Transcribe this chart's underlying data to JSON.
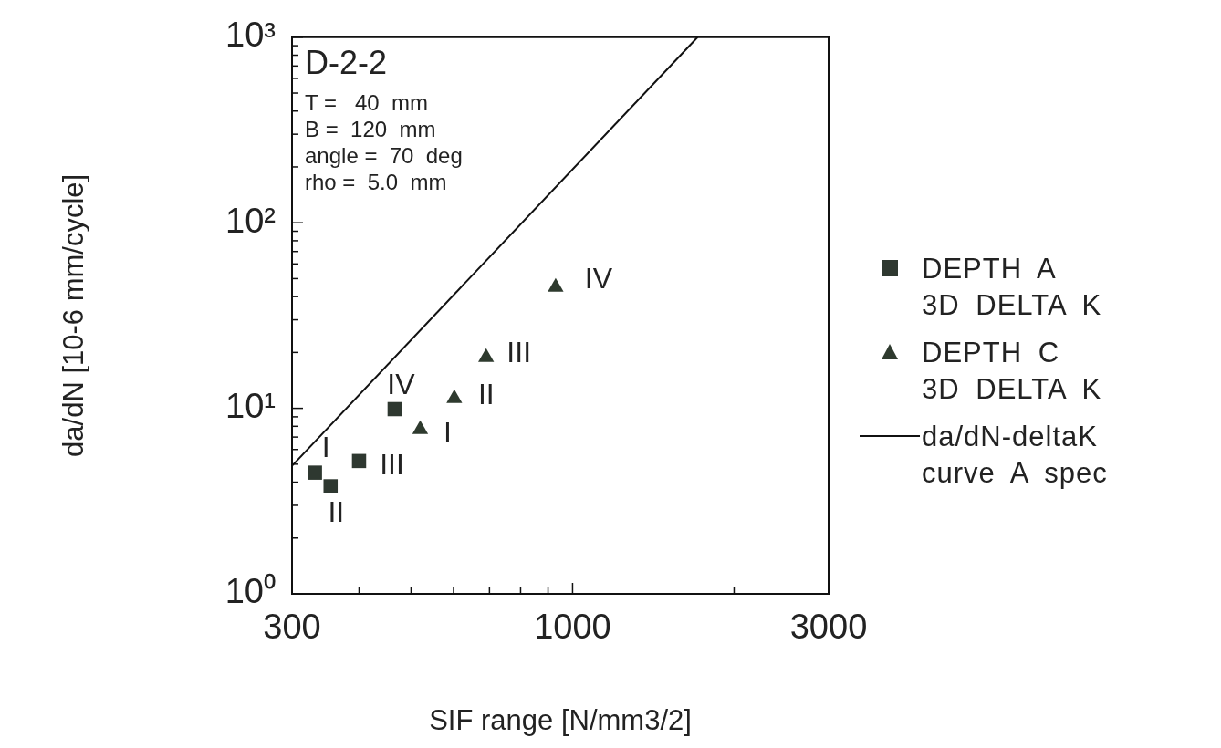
{
  "chart_data": {
    "type": "scatter",
    "xlabel": "SIF range [N/mm3/2]",
    "ylabel": "da/dN [10-6 mm/cycle]",
    "log": "xy",
    "grid": false,
    "legend": "right",
    "xlim": [
      300,
      3000
    ],
    "ylim": [
      1,
      1000
    ],
    "xticks": [
      300,
      {
        "value": 400,
        "label": null
      },
      {
        "value": 500,
        "label": null
      },
      {
        "value": 600,
        "label": null
      },
      {
        "value": 700,
        "label": null
      },
      {
        "value": 800,
        "label": null
      },
      {
        "value": 900,
        "label": null
      },
      1000,
      {
        "value": 2000,
        "label": null
      },
      3000
    ],
    "yticks": [
      {
        "value": 1,
        "label": "10⁰"
      },
      {
        "value": 2,
        "label": null
      },
      {
        "value": 3,
        "label": null
      },
      {
        "value": 4,
        "label": null
      },
      {
        "value": 5,
        "label": null
      },
      {
        "value": 6,
        "label": null
      },
      {
        "value": 7,
        "label": null
      },
      {
        "value": 8,
        "label": null
      },
      {
        "value": 9,
        "label": null
      },
      {
        "value": 10,
        "label": "10¹"
      },
      {
        "value": 20,
        "label": null
      },
      {
        "value": 30,
        "label": null
      },
      {
        "value": 40,
        "label": null
      },
      {
        "value": 50,
        "label": null
      },
      {
        "value": 60,
        "label": null
      },
      {
        "value": 70,
        "label": null
      },
      {
        "value": 80,
        "label": null
      },
      {
        "value": 90,
        "label": null
      },
      {
        "value": 100,
        "label": "10²"
      },
      {
        "value": 200,
        "label": null
      },
      {
        "value": 300,
        "label": null
      },
      {
        "value": 400,
        "label": null
      },
      {
        "value": 500,
        "label": null
      },
      {
        "value": 600,
        "label": null
      },
      {
        "value": 700,
        "label": null
      },
      {
        "value": 800,
        "label": null
      },
      {
        "value": 900,
        "label": null
      },
      {
        "value": 1000,
        "label": "10³"
      }
    ],
    "series": [
      {
        "name": "DEPTH A\n3D DELTA K",
        "marker": "square",
        "color": "#2e3830",
        "x": [
          331,
          354,
          400,
          466
        ],
        "values": [
          4.5,
          3.8,
          5.2,
          9.9
        ]
      },
      {
        "name": "DEPTH C\n3D DELTA K",
        "marker": "triangle",
        "color": "#2e3a2e",
        "x": [
          520,
          602,
          690,
          930
        ],
        "values": [
          7.7,
          11.3,
          18.8,
          45
        ]
      },
      {
        "name": "da/dN-deltaK\ncurve A spec",
        "type": "line",
        "marker": "none",
        "line_style": "solid",
        "color": "#111111",
        "x": [
          300,
          1710
        ],
        "values": [
          4.9,
          1000
        ]
      }
    ],
    "annotations": [
      "D-2-2",
      "T =   40  mm",
      "B =  120  mm",
      "angle =  70  deg",
      "rho =  5.0  mm",
      {
        "text": "I",
        "x": 331,
        "y": 4.5
      },
      {
        "text": "II",
        "x": 354,
        "y": 3.8
      },
      {
        "text": "III",
        "x": 400,
        "y": 5.2
      },
      {
        "text": "IV",
        "x": 466,
        "y": 9.9
      },
      {
        "text": "I",
        "x": 520,
        "y": 7.7
      },
      {
        "text": "II",
        "x": 602,
        "y": 11.3
      },
      {
        "text": "III",
        "x": 690,
        "y": 18.8
      },
      {
        "text": "IV",
        "x": 930,
        "y": 45
      }
    ]
  }
}
